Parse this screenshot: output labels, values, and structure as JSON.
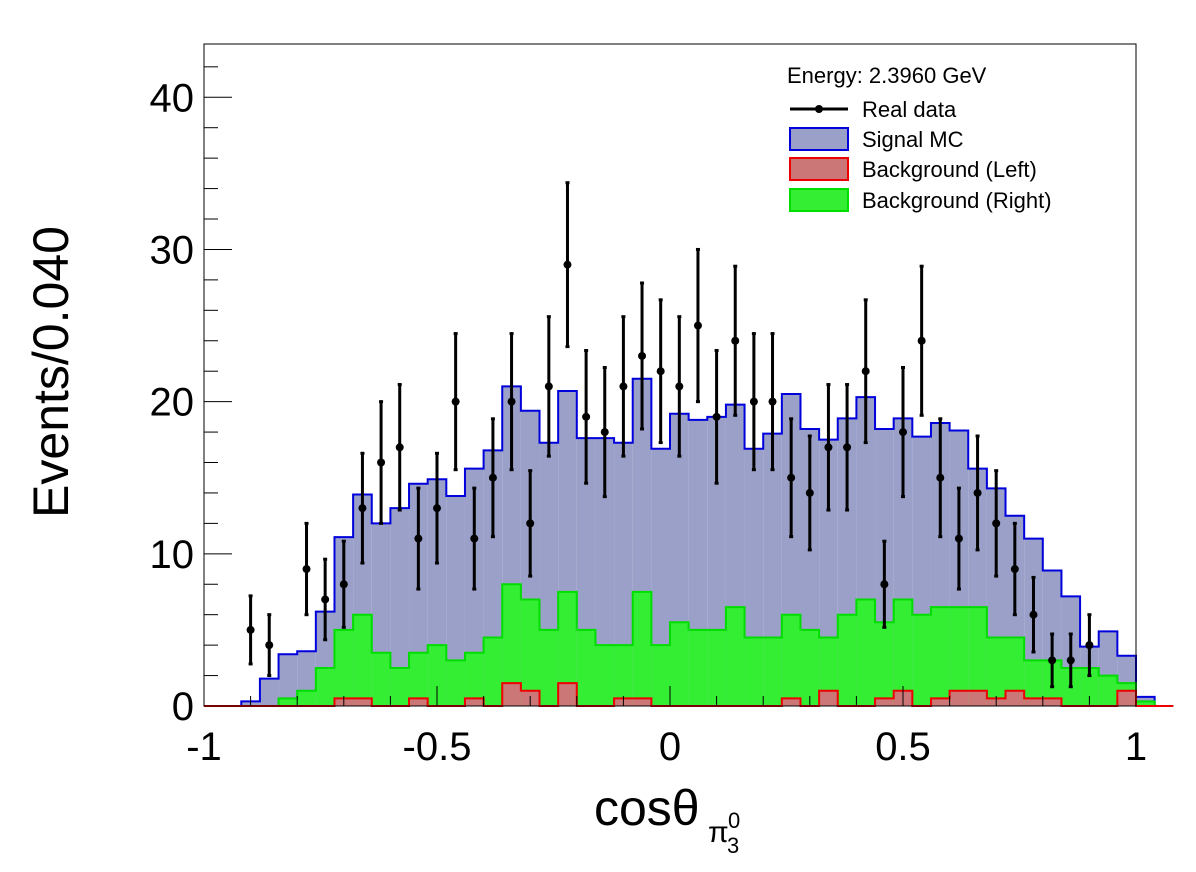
{
  "chart_data": {
    "type": "histogram",
    "ylabel": "Events/0.040",
    "xlabel": {
      "main": "cosθ",
      "subscript": "π",
      "sub_sup": "0",
      "sub_sub": "3"
    },
    "xlim": [
      -1,
      1
    ],
    "ylim": [
      0,
      43.5
    ],
    "x_ticks": [
      -1,
      -0.5,
      0,
      0.5,
      1
    ],
    "x_tick_labels": [
      "-1",
      "-0.5",
      "0",
      "0.5",
      "1"
    ],
    "y_ticks": [
      0,
      10,
      20,
      30,
      40
    ],
    "y_tick_labels": [
      "0",
      "10",
      "20",
      "30",
      "40"
    ],
    "bin_width": 0.04,
    "bin_edges_start": -1.0,
    "legend": {
      "title": "Energy: 2.3960 GeV",
      "placement": "top-right",
      "entries": [
        {
          "label": "Real data",
          "kind": "marker",
          "color": "#000000"
        },
        {
          "label": "Signal MC",
          "kind": "fill",
          "color": "#9999cc",
          "edge": "#0000cc"
        },
        {
          "label": "Background (Left)",
          "kind": "fill",
          "color": "#cc6666",
          "edge": "#ee0000"
        },
        {
          "label": "Background (Right)",
          "kind": "fill",
          "color": "#66ee66",
          "edge": "#00cc00"
        }
      ]
    },
    "series": [
      {
        "name": "Signal MC",
        "type": "step-fill",
        "color": "#9aa0c8",
        "edge": "#0000dd",
        "values": [
          0,
          0,
          0.3,
          1.8,
          3.4,
          3.6,
          6.2,
          11.1,
          13.9,
          12.0,
          13.0,
          14.6,
          14.9,
          13.8,
          15.6,
          16.8,
          21.0,
          19.4,
          17.3,
          20.7,
          17.6,
          17.6,
          17.3,
          21.5,
          16.9,
          19.2,
          18.8,
          19.0,
          19.8,
          16.9,
          17.9,
          20.5,
          18.2,
          17.5,
          18.9,
          20.3,
          18.2,
          18.9,
          17.7,
          18.6,
          18.1,
          15.6,
          14.3,
          12.5,
          11.0,
          8.9,
          7.2,
          3.9,
          4.9,
          3.3,
          0.6,
          0
        ]
      },
      {
        "name": "Background (Right)",
        "type": "step-fill",
        "color": "#33ee33",
        "edge": "#00dd00",
        "values": [
          0,
          0,
          0,
          0,
          0.5,
          1.0,
          2.5,
          5.0,
          6.0,
          3.5,
          2.5,
          3.5,
          4.0,
          3.0,
          3.5,
          4.5,
          8.0,
          7.0,
          5.0,
          7.5,
          5.0,
          4.0,
          4.0,
          7.5,
          4.0,
          5.5,
          5.0,
          5.0,
          6.5,
          4.5,
          4.5,
          6.0,
          5.0,
          4.5,
          6.0,
          7.0,
          5.5,
          7.0,
          6.0,
          6.5,
          6.5,
          6.5,
          4.5,
          4.5,
          3.0,
          3.0,
          2.5,
          2.5,
          2.0,
          1.5,
          0.3,
          0
        ]
      },
      {
        "name": "Background (Left)",
        "type": "step-fill",
        "color": "#cc7777",
        "edge": "#ee0000",
        "values": [
          0,
          0,
          0,
          0,
          0,
          0,
          0,
          0.5,
          0.5,
          0,
          0,
          0.5,
          0,
          0,
          0.5,
          0,
          1.5,
          1.0,
          0,
          1.5,
          0,
          0,
          0.5,
          0.5,
          0,
          0,
          0,
          0,
          0,
          0,
          0,
          0.5,
          0,
          1.0,
          0,
          0,
          0.5,
          1.0,
          0,
          0.5,
          1.0,
          1.0,
          0.5,
          1.0,
          0.5,
          0.5,
          0,
          0,
          0,
          1.0,
          0,
          0
        ]
      },
      {
        "name": "Real data",
        "type": "points-errorbars",
        "color": "#000000",
        "x": [
          -0.9,
          -0.86,
          -0.82,
          -0.78,
          -0.74,
          -0.7,
          -0.66,
          -0.62,
          -0.58,
          -0.54,
          -0.5,
          -0.46,
          -0.42,
          -0.38,
          -0.34,
          -0.3,
          -0.26,
          -0.22,
          -0.18,
          -0.14,
          -0.1,
          -0.06,
          -0.02,
          0.02,
          0.06,
          0.1,
          0.14,
          0.18,
          0.22,
          0.26,
          0.3,
          0.34,
          0.38,
          0.42,
          0.46,
          0.5,
          0.54,
          0.58,
          0.62,
          0.66,
          0.7,
          0.74,
          0.78,
          0.82,
          0.86,
          0.9
        ],
        "y": [
          5,
          4,
          0,
          9,
          7,
          8,
          13,
          16,
          17,
          11,
          13,
          20,
          11,
          15,
          20,
          12,
          21,
          29,
          19,
          18,
          21,
          23,
          22,
          21,
          25,
          19,
          24,
          20,
          20,
          15,
          14,
          17,
          17,
          22,
          8,
          18,
          24,
          15,
          11,
          14,
          12,
          9,
          6,
          3,
          3,
          4
        ]
      }
    ]
  }
}
